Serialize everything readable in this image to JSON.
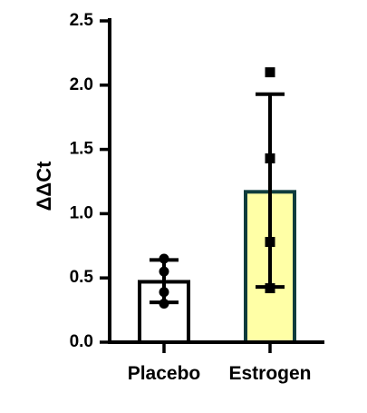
{
  "chart_data": {
    "type": "bar",
    "title": "",
    "xlabel": "",
    "ylabel": "ΔΔCt",
    "ylim": [
      0,
      2.5
    ],
    "yticks": [
      "0.0",
      "0.5",
      "1.0",
      "1.5",
      "2.0",
      "2.5"
    ],
    "categories": [
      "Placebo",
      "Estrogen"
    ],
    "bar_colors": [
      "#ffffff",
      "#ffffa6"
    ],
    "bar_edge_colors": [
      "#000000",
      "#0f3c3c"
    ],
    "means": [
      0.47,
      1.17
    ],
    "error_upper": [
      0.64,
      1.93
    ],
    "error_lower": [
      0.31,
      0.43
    ],
    "points": [
      {
        "category": "Placebo",
        "marker": "circle",
        "values": [
          0.3,
          0.39,
          0.55,
          0.65
        ]
      },
      {
        "category": "Estrogen",
        "marker": "square",
        "values": [
          0.42,
          0.78,
          1.43,
          2.1
        ]
      }
    ],
    "grid": false,
    "legend": "none"
  }
}
